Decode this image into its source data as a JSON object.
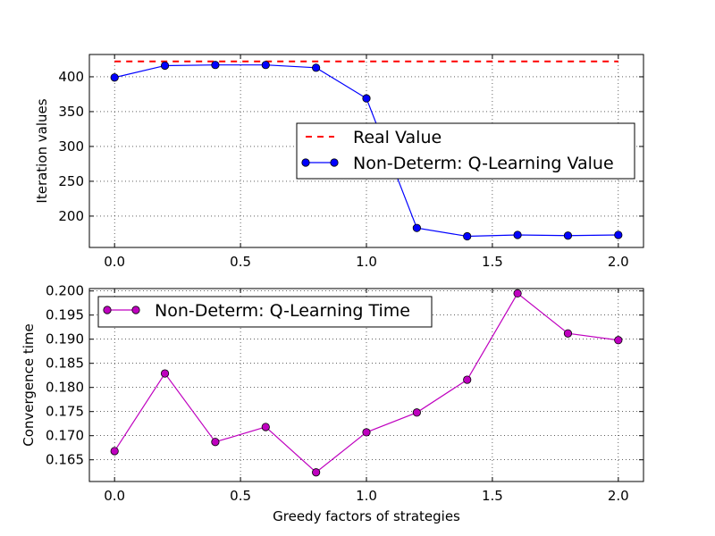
{
  "chart_data": [
    {
      "type": "line",
      "xlabel": "",
      "ylabel": "Iteration values",
      "xlim": [
        -0.1,
        2.1
      ],
      "ylim": [
        155,
        432
      ],
      "xticks": [
        0.0,
        0.5,
        1.0,
        1.5,
        2.0
      ],
      "xtick_labels": [
        "0.0",
        "0.5",
        "1.0",
        "1.5",
        "2.0"
      ],
      "yticks": [
        200,
        250,
        300,
        350,
        400
      ],
      "ytick_labels": [
        "200",
        "250",
        "300",
        "350",
        "400"
      ],
      "grid": true,
      "legend_position": "center-right",
      "series": [
        {
          "name": "Real Value",
          "style": "dashed",
          "color": "#ff0000",
          "x": [
            0.0,
            2.0
          ],
          "y": [
            422,
            422
          ]
        },
        {
          "name": "Non-Determ: Q-Learning Value",
          "style": "line-circle",
          "color": "#0000ff",
          "x": [
            0.0,
            0.2,
            0.4,
            0.6,
            0.8,
            1.0,
            1.2,
            1.4,
            1.6,
            1.8,
            2.0
          ],
          "y": [
            399,
            416,
            417,
            417,
            413,
            369,
            183,
            171,
            173,
            172,
            173
          ]
        }
      ]
    },
    {
      "type": "line",
      "xlabel": "Greedy factors of strategies",
      "ylabel": "Convergence time",
      "xlim": [
        -0.1,
        2.1
      ],
      "ylim": [
        0.1605,
        0.2005
      ],
      "xticks": [
        0.0,
        0.5,
        1.0,
        1.5,
        2.0
      ],
      "xtick_labels": [
        "0.0",
        "0.5",
        "1.0",
        "1.5",
        "2.0"
      ],
      "yticks": [
        0.165,
        0.17,
        0.175,
        0.18,
        0.185,
        0.19,
        0.195,
        0.2
      ],
      "ytick_labels": [
        "0.165",
        "0.170",
        "0.175",
        "0.180",
        "0.185",
        "0.190",
        "0.195",
        "0.200"
      ],
      "grid": true,
      "legend_position": "top-left",
      "series": [
        {
          "name": "Non-Determ: Q-Learning Time",
          "style": "line-circle",
          "color": "#bf00bf",
          "x": [
            0.0,
            0.2,
            0.4,
            0.6,
            0.8,
            1.0,
            1.2,
            1.4,
            1.6,
            1.8,
            2.0
          ],
          "y": [
            0.1668,
            0.1829,
            0.1687,
            0.1718,
            0.1624,
            0.1707,
            0.1748,
            0.1816,
            0.1995,
            0.1912,
            0.1898
          ]
        }
      ]
    }
  ]
}
